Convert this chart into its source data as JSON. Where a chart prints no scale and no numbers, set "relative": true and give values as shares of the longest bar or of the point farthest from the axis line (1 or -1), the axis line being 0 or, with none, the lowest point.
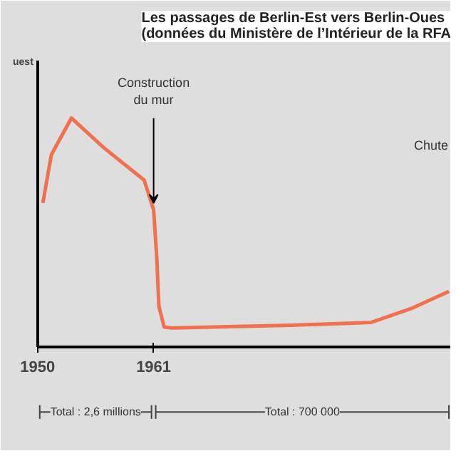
{
  "chart_data": {
    "type": "line",
    "relative": true,
    "title": "Les passages de Berlin-Est vers Berlin-Oues\n(données du Ministère de l’Intérieur de la RFA",
    "x": [
      1950.5,
      1951.3,
      1953.2,
      1956.3,
      1960.1,
      1961.0,
      1961.3,
      1961.5,
      1962.0,
      1962.7,
      1974,
      1981.6,
      1985.4,
      1989.0
    ],
    "series": [
      {
        "color": "#f07050",
        "values": [
          0.63,
          0.84,
          1.0,
          0.87,
          0.73,
          0.6,
          0.39,
          0.18,
          0.09,
          0.086,
          0.098,
          0.11,
          0.17,
          0.245
        ]
      }
    ],
    "xlim": [
      1950,
      1989.2
    ],
    "xticks": [
      1950,
      1961
    ],
    "grid": false,
    "legend": false,
    "marker": "none",
    "line_style": "solid",
    "annotations": [
      {
        "text": "Construction\ndu mur",
        "x": 1961,
        "y": 0.6
      },
      "Chute",
      "Total : 2,6 millions",
      "Total : 700 000",
      "uest"
    ]
  }
}
